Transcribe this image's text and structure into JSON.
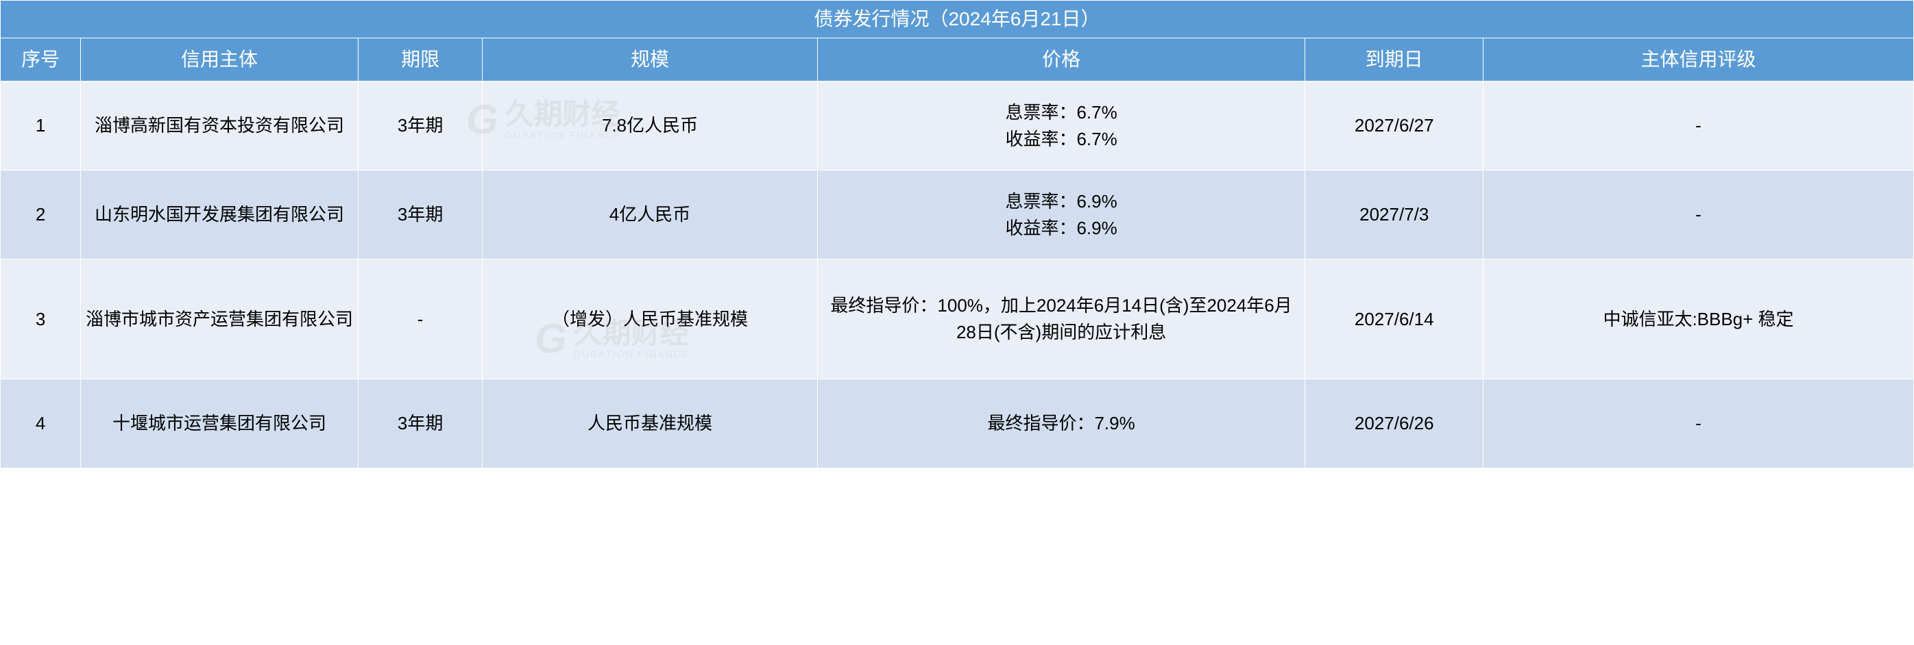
{
  "table": {
    "title": "债券发行情况（2024年6月21日）",
    "columns": {
      "seq": "序号",
      "entity": "信用主体",
      "term": "期限",
      "scale": "规模",
      "price": "价格",
      "date": "到期日",
      "rating": "主体信用评级"
    },
    "rows": [
      {
        "seq": "1",
        "entity": "淄博高新国有资本投资有限公司",
        "term": "3年期",
        "scale": "7.8亿人民币",
        "price_line1": "息票率：6.7%",
        "price_line2": "收益率：6.7%",
        "date": "2027/6/27",
        "rating": "-"
      },
      {
        "seq": "2",
        "entity": "山东明水国开发展集团有限公司",
        "term": "3年期",
        "scale": "4亿人民币",
        "price_line1": "息票率：6.9%",
        "price_line2": "收益率：6.9%",
        "date": "2027/7/3",
        "rating": "-"
      },
      {
        "seq": "3",
        "entity": "淄博市城市资产运营集团有限公司",
        "term": "-",
        "scale": "（增发）人民币基准规模",
        "price": "最终指导价：100%，加上2024年6月14日(含)至2024年6月28日(不含)期间的应计利息",
        "date": "2027/6/14",
        "rating": "中诚信亚太:BBBg+ 稳定"
      },
      {
        "seq": "4",
        "entity": "十堰城市运营集团有限公司",
        "term": "3年期",
        "scale": "人民币基准规模",
        "price": "最终指导价：7.9%",
        "date": "2027/6/26",
        "rating": "-"
      }
    ],
    "colors": {
      "header_bg": "#5b9bd5",
      "header_text": "#ffffff",
      "row_light_bg": "#eaeff7",
      "row_dark_bg": "#d2deef",
      "border": "#ffffff",
      "text": "#000000"
    },
    "column_widths_pct": {
      "seq": 4.2,
      "entity": 14.5,
      "term": 6.5,
      "scale": 17.5,
      "price": 25.5,
      "date": 9.3,
      "rating": 22.5
    },
    "font_sizes_pt": {
      "title": 21,
      "header": 21,
      "body": 19
    }
  },
  "watermark": {
    "logo_text": "G",
    "cn_text": "久期财经",
    "en_text": "DURATION FINANCE"
  }
}
